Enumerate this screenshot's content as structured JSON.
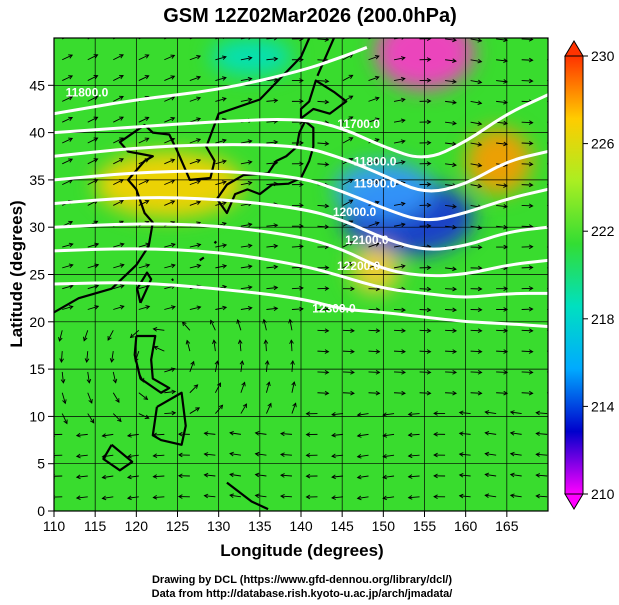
{
  "chart_data": {
    "type": "heatmap",
    "title": "GSM 12Z02Mar2026 (200.0hPa)",
    "xlabel": "Longitude (degrees)",
    "ylabel": "Latitude  (degrees)",
    "xlim": [
      110,
      170
    ],
    "ylim": [
      0,
      50
    ],
    "x_ticks": [
      "110",
      "115",
      "120",
      "125",
      "130",
      "135",
      "140",
      "145",
      "150",
      "155",
      "160",
      "165"
    ],
    "y_ticks": [
      "0",
      "5",
      "10",
      "15",
      "20",
      "25",
      "30",
      "35",
      "40",
      "45"
    ],
    "grid": true,
    "colorbar": {
      "min": 210,
      "max": 230,
      "tick_labels": [
        "230",
        "226",
        "222",
        "218",
        "214",
        "210"
      ],
      "colors": [
        "#ff00ff",
        "#0000cc",
        "#00aaff",
        "#00e0c0",
        "#33dd33",
        "#aaee22",
        "#ffcc00",
        "#ff3300"
      ]
    },
    "contour_labels": [
      {
        "text": "11800.0",
        "lon": 114,
        "lat": 43.8
      },
      {
        "text": "11700.0",
        "lon": 147,
        "lat": 40.5
      },
      {
        "text": "11800.0",
        "lon": 149,
        "lat": 36.5
      },
      {
        "text": "11900.0",
        "lon": 149,
        "lat": 34.2
      },
      {
        "text": "12000.0",
        "lon": 146.5,
        "lat": 31.2
      },
      {
        "text": "12100.0",
        "lon": 148,
        "lat": 28.2
      },
      {
        "text": "12200.0",
        "lon": 147,
        "lat": 25.5
      },
      {
        "text": "12300.0",
        "lon": 144,
        "lat": 21.0
      }
    ],
    "contour_lines": [
      {
        "points": [
          [
            110,
            42
          ],
          [
            120,
            43.5
          ],
          [
            130,
            44.5
          ],
          [
            140,
            46.5
          ],
          [
            145,
            48
          ],
          [
            148,
            49
          ]
        ]
      },
      {
        "points": [
          [
            110,
            40
          ],
          [
            120,
            40.6
          ],
          [
            130,
            41.2
          ],
          [
            140,
            41.5
          ],
          [
            145,
            40.5
          ],
          [
            150,
            38.5
          ],
          [
            155,
            37
          ],
          [
            160,
            39
          ],
          [
            165,
            42
          ],
          [
            170,
            44
          ]
        ]
      },
      {
        "points": [
          [
            110,
            37.5
          ],
          [
            120,
            38.4
          ],
          [
            130,
            38.8
          ],
          [
            140,
            38.6
          ],
          [
            145,
            37.3
          ],
          [
            150,
            35.5
          ],
          [
            155,
            33.5
          ],
          [
            160,
            34.5
          ],
          [
            165,
            37
          ],
          [
            170,
            38
          ]
        ]
      },
      {
        "points": [
          [
            110,
            35
          ],
          [
            120,
            35.8
          ],
          [
            130,
            36
          ],
          [
            140,
            35.3
          ],
          [
            145,
            33.8
          ],
          [
            150,
            32
          ],
          [
            155,
            30.5
          ],
          [
            160,
            31.5
          ],
          [
            165,
            33
          ],
          [
            170,
            34
          ]
        ]
      },
      {
        "points": [
          [
            110,
            32.5
          ],
          [
            120,
            33.2
          ],
          [
            130,
            33
          ],
          [
            140,
            32
          ],
          [
            145,
            30.8
          ],
          [
            150,
            28.8
          ],
          [
            155,
            27.5
          ],
          [
            160,
            28
          ],
          [
            165,
            29.5
          ],
          [
            170,
            30
          ]
        ]
      },
      {
        "points": [
          [
            110,
            30
          ],
          [
            120,
            30.4
          ],
          [
            130,
            30.2
          ],
          [
            140,
            29
          ],
          [
            145,
            27.7
          ],
          [
            150,
            25.5
          ],
          [
            155,
            24.8
          ],
          [
            160,
            25
          ],
          [
            165,
            26
          ],
          [
            170,
            26.5
          ]
        ]
      },
      {
        "points": [
          [
            110,
            27.5
          ],
          [
            120,
            27.8
          ],
          [
            130,
            27.4
          ],
          [
            140,
            26
          ],
          [
            145,
            24.8
          ],
          [
            150,
            23.5
          ],
          [
            155,
            23
          ],
          [
            160,
            22.5
          ],
          [
            165,
            23
          ],
          [
            170,
            23
          ]
        ]
      },
      {
        "points": [
          [
            110,
            24
          ],
          [
            120,
            24.2
          ],
          [
            130,
            23.5
          ],
          [
            140,
            22.5
          ],
          [
            145,
            21.3
          ],
          [
            150,
            21
          ],
          [
            155,
            20.5
          ],
          [
            160,
            20
          ],
          [
            165,
            19.8
          ],
          [
            170,
            19.5
          ]
        ]
      }
    ],
    "temperature_anomalies": [
      {
        "lon": 155,
        "lat": 48.5,
        "rx": 6,
        "ry": 4,
        "color": "#ff33cc"
      },
      {
        "lon": 153,
        "lat": 31,
        "rx": 8,
        "ry": 4,
        "color": "#1830d8"
      },
      {
        "lon": 150,
        "lat": 34,
        "rx": 6,
        "ry": 3,
        "color": "#3399ff"
      },
      {
        "lon": 124,
        "lat": 34.5,
        "rx": 9,
        "ry": 3.5,
        "color": "#ffd000"
      },
      {
        "lon": 164,
        "lat": 37,
        "rx": 4,
        "ry": 3.5,
        "color": "#ff9900"
      },
      {
        "lon": 149,
        "lat": 25.5,
        "rx": 3,
        "ry": 2.5,
        "color": "#ffcc33"
      },
      {
        "lon": 134,
        "lat": 48,
        "rx": 5,
        "ry": 2,
        "color": "#00e0c0"
      }
    ]
  },
  "credits": {
    "line1": "Drawing by DCL (https://www.gfd-dennou.org/library/dcl/)",
    "line2": "Data from http://database.rish.kyoto-u.ac.jp/arch/jmadata/"
  }
}
